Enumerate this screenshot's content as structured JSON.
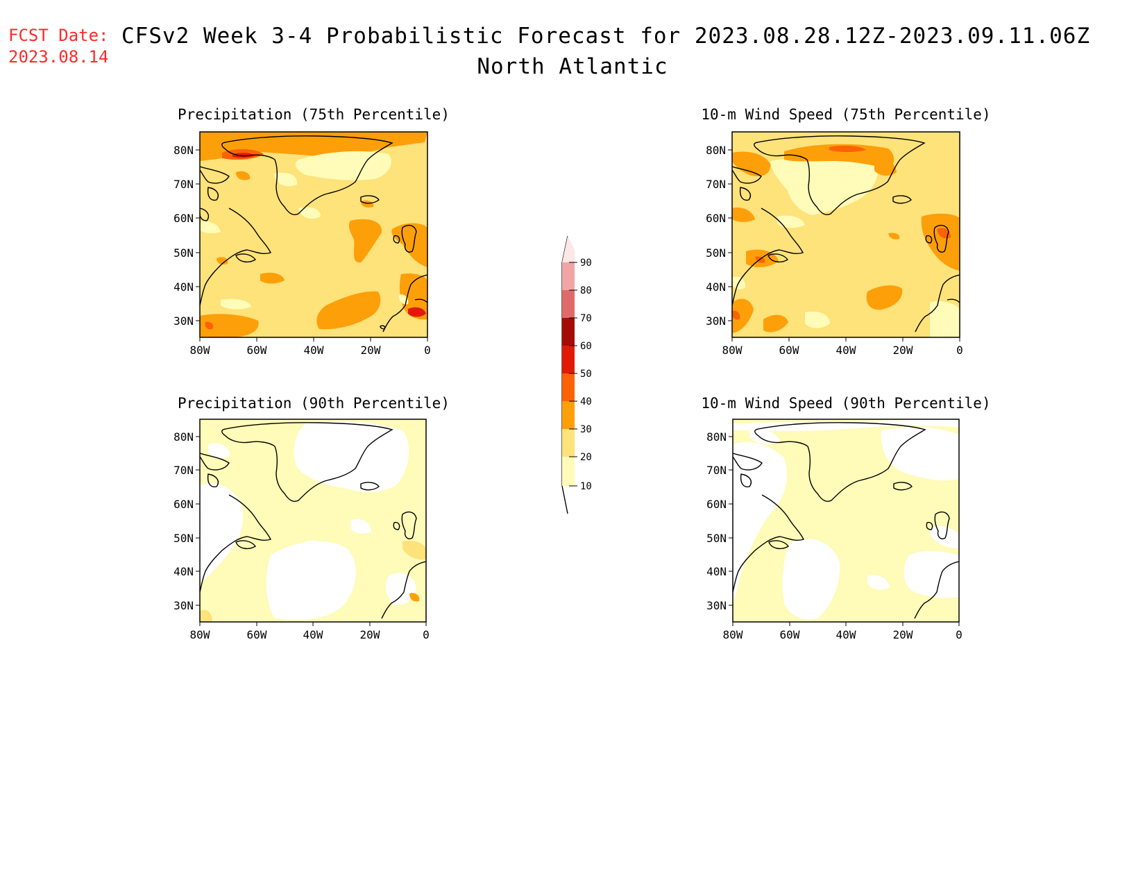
{
  "header": {
    "fcst_label": "FCST Date:",
    "fcst_date": "2023.08.14",
    "title": "CFSv2 Week 3-4 Probabilistic Forecast for 2023.08.28.12Z-2023.09.11.06Z",
    "region": "North Atlantic"
  },
  "axes": {
    "lon_ticks": [
      "80W",
      "60W",
      "40W",
      "20W",
      "0"
    ],
    "lat_ticks": [
      "80N",
      "70N",
      "60N",
      "50N",
      "40N",
      "30N"
    ]
  },
  "panels": [
    {
      "id": "precip-75",
      "title": "Precipitation (75th Percentile)"
    },
    {
      "id": "wind-75",
      "title": "10-m Wind Speed (75th Percentile)"
    },
    {
      "id": "precip-90",
      "title": "Precipitation (90th Percentile)"
    },
    {
      "id": "wind-90",
      "title": "10-m Wind Speed (90th Percentile)"
    }
  ],
  "colorbar": {
    "labels": [
      "10",
      "20",
      "30",
      "40",
      "50",
      "60",
      "70",
      "80",
      "90"
    ],
    "colors": [
      "#fffbb8",
      "#fee27a",
      "#fd9f09",
      "#fb6205",
      "#e21a05",
      "#a50c05",
      "#e06a6a",
      "#f2a5a5",
      "#fde6e6"
    ]
  }
}
